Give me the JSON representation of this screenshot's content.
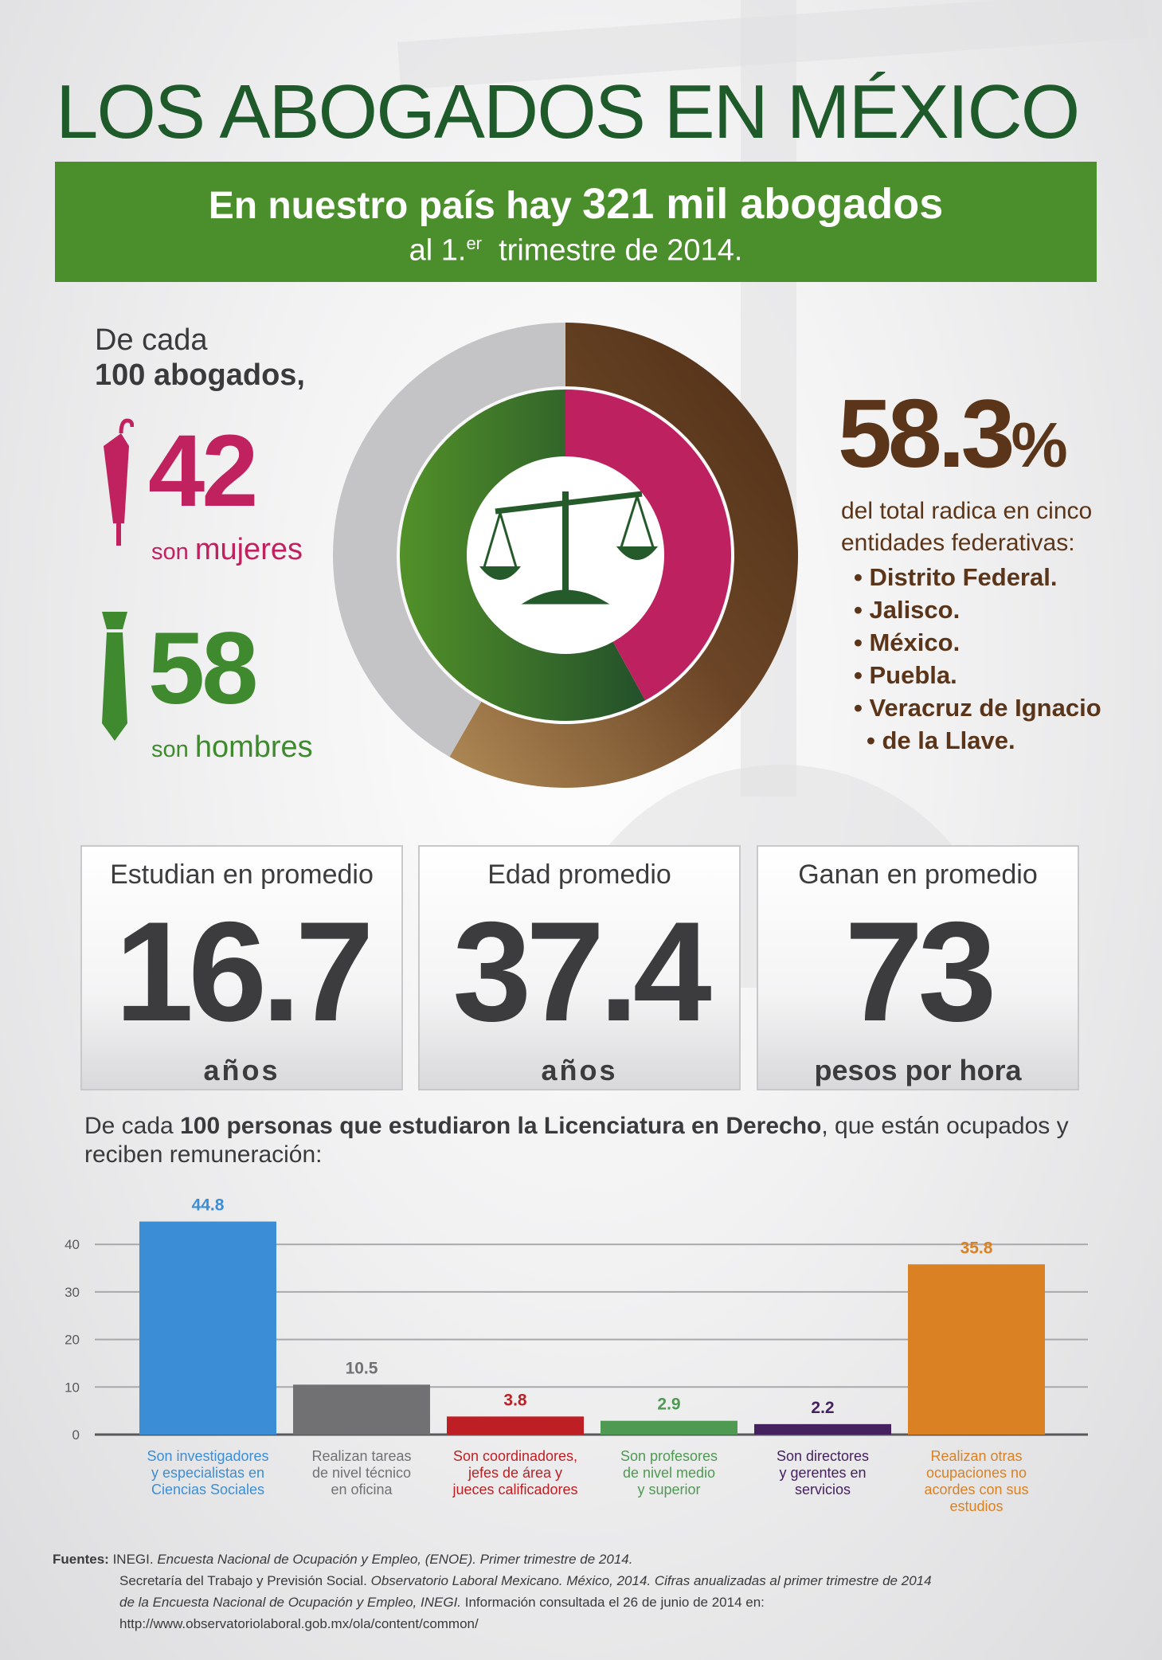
{
  "title": "LOS ABOGADOS EN MÉXICO",
  "banner": {
    "line1_pre": "En nuestro país hay ",
    "line1_bold": "321 mil abogados",
    "line2_pre": "al 1.",
    "line2_sup": "er",
    "line2_post": "  trimestre de 2014."
  },
  "gender": {
    "intro_line1": "De cada",
    "intro_line2": "100 abogados,",
    "women_value": "42",
    "women_label_pre": "son ",
    "women_label": "mujeres",
    "men_value": "58",
    "men_label_pre": "son ",
    "men_label": "hombres",
    "women_share": 42,
    "men_share": 58,
    "colors": {
      "women": "#c0215f",
      "men": "#3f8a2f",
      "brown": "#5a3519",
      "gray": "#c4c4c6"
    },
    "icons": {
      "women": "umbrella-icon",
      "men": "tie-icon",
      "center": "scales-of-justice-icon"
    }
  },
  "concentration": {
    "value": "58.3",
    "unit": "%",
    "share": 58.3,
    "text_line1": "del total radica en cinco",
    "text_line2": "entidades federativas:",
    "states": [
      "Distrito Federal.",
      "Jalisco.",
      "México.",
      "Puebla.",
      "Veracruz de Ignacio",
      "de la Llave."
    ]
  },
  "stats": [
    {
      "label": "Estudian en promedio",
      "value": "16.7",
      "unit": "años"
    },
    {
      "label": "Edad promedio",
      "value": "37.4",
      "unit": "años"
    },
    {
      "label": "Ganan en promedio",
      "value": "73",
      "unit": "pesos por hora"
    }
  ],
  "chart_intro": {
    "pre": "De cada ",
    "bold": "100 personas que estudiaron la Licenciatura en Derecho",
    "post": ", que están ocupados y reciben remuneración:"
  },
  "chart_data": {
    "type": "bar",
    "categories": [
      "Son investigadores y especialistas en Ciencias Sociales",
      "Realizan tareas de nivel técnico en oficina",
      "Son coordinadores, jefes de área y jueces calificadores",
      "Son profesores de nivel medio y superior",
      "Son directores y gerentes en servicios",
      "Realizan otras ocupaciones no acordes con sus estudios"
    ],
    "category_lines": [
      [
        "Son investigadores",
        "y especialistas en",
        "Ciencias Sociales"
      ],
      [
        "Realizan tareas",
        "de nivel técnico",
        "en oficina"
      ],
      [
        "Son coordinadores,",
        "jefes de área y",
        "jueces calificadores"
      ],
      [
        "Son profesores",
        "de nivel medio",
        "y superior"
      ],
      [
        "Son directores",
        "y gerentes en",
        "servicios"
      ],
      [
        "Realizan otras",
        "ocupaciones no",
        "acordes con sus",
        "estudios"
      ]
    ],
    "values": [
      44.8,
      10.5,
      3.8,
      2.9,
      2.2,
      35.8
    ],
    "value_labels": [
      "44.8",
      "10.5",
      "3.8",
      "2.9",
      "2.2",
      "35.8"
    ],
    "colors": [
      "#3b8ed6",
      "#717174",
      "#bd1f24",
      "#4e9a52",
      "#45215f",
      "#d98123"
    ],
    "yticks": [
      0,
      10,
      20,
      30,
      40
    ],
    "ylim": [
      0,
      45
    ],
    "grid": true,
    "xlabel": "",
    "ylabel": "",
    "title": ""
  },
  "footer": {
    "label": "Fuentes:",
    "line1_a": "INEGI. ",
    "line1_b": "Encuesta Nacional de Ocupación y Empleo, (ENOE). Primer trimestre de 2014.",
    "line2_a": "Secretaría del Trabajo y Previsión Social. ",
    "line2_b": "Observatorio Laboral Mexicano. México, 2014. Cifras anualizadas al primer trimestre de 2014",
    "line3_a": "de la Encuesta Nacional de Ocupación y Empleo, INEGI.",
    "line3_b": " Información consultada el 26 de junio de 2014 en:",
    "line4": "http://www.observatoriolaboral.gob.mx/ola/content/common/"
  }
}
